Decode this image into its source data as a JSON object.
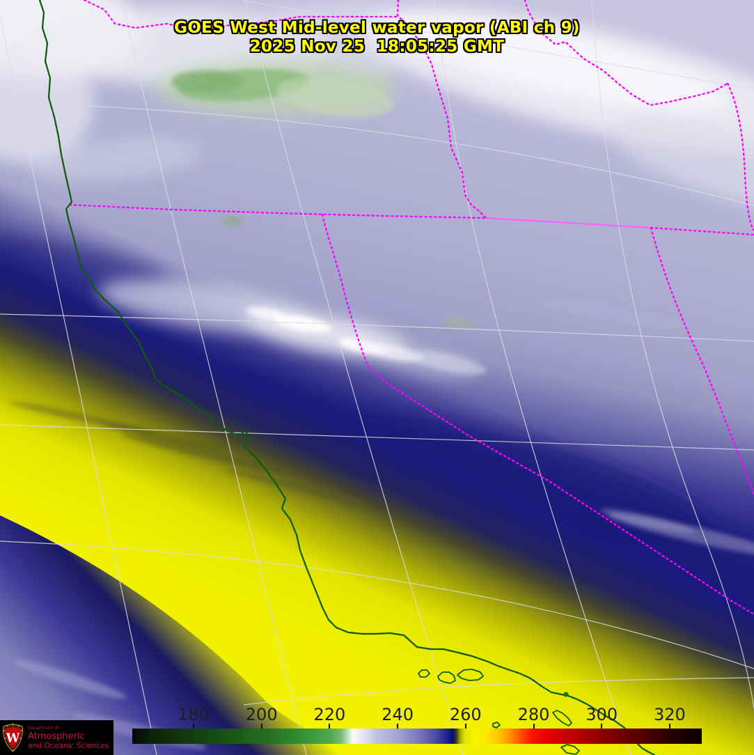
{
  "title": {
    "line1": "GOES West Mid-level water vapor (ABI ch 9)",
    "line2": "2025 Nov 25  18:05:25 GMT"
  },
  "colorbar": {
    "ticks": [
      "180",
      "200",
      "220",
      "240",
      "260",
      "280",
      "300",
      "320"
    ],
    "tick_values": [
      180,
      200,
      220,
      240,
      260,
      280,
      300,
      320
    ],
    "orientation": "horizontal",
    "palette_order": [
      "black",
      "green",
      "white",
      "lavender",
      "navy",
      "yellow",
      "orange",
      "red",
      "dark-red",
      "black"
    ]
  },
  "logo": {
    "department": "Department of",
    "line1": "Atmospheric",
    "line2": "and Oceanic Sciences",
    "crest_letter": "W"
  },
  "map": {
    "satellite": "GOES West",
    "channel": "ABI ch 9",
    "product": "Mid-level water vapor",
    "overlays": [
      "state-borders",
      "coastline",
      "graticule",
      "channel-islands"
    ]
  },
  "theme": {
    "title-color": "#ffff00",
    "border": "#ff00ff",
    "border-solid": "#ff5cff",
    "coast": "#0b5c0b",
    "coast-dot": "#f23ae6",
    "graticule": "#dcdce2",
    "logo-red": "#cc1140",
    "moist-lavender": "#b4b2d4",
    "dry-yellow": "#f0f000",
    "deep-navy": "#1a1a7c",
    "cold-cloud-green": "#8fbc80"
  }
}
